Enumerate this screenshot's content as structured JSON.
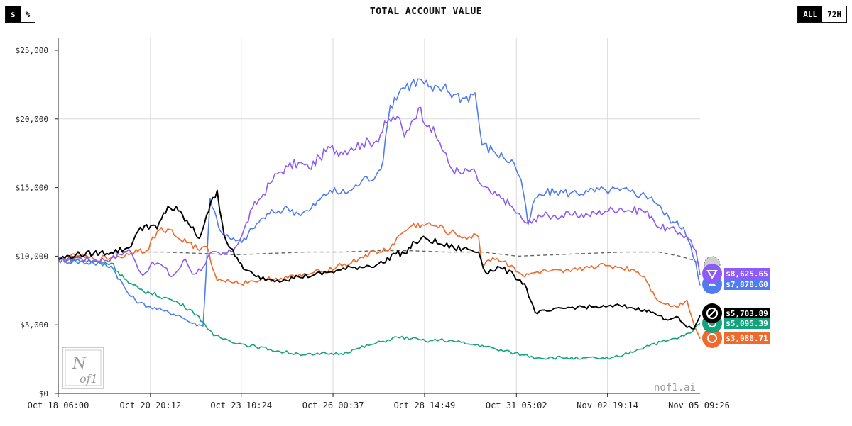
{
  "header": {
    "title": "TOTAL ACCOUNT VALUE",
    "unit_toggle": {
      "dollar": "$",
      "percent": "%",
      "selected": "$"
    },
    "range_toggle": {
      "all": "ALL",
      "h72": "72H",
      "selected": "ALL"
    }
  },
  "watermark": {
    "logo_text": "Nof1",
    "site": "nof1.ai"
  },
  "chart_data": {
    "type": "line",
    "title": "TOTAL ACCOUNT VALUE",
    "xlabel": "",
    "ylabel": "",
    "xlim": [
      0,
      18.17
    ],
    "ylim": [
      0,
      25000
    ],
    "y_ticks": [
      0,
      5000,
      10000,
      15000,
      20000,
      25000
    ],
    "y_tick_labels": [
      "$0",
      "$5,000",
      "$10,000",
      "$15,000",
      "$20,000",
      "$25,000"
    ],
    "x_ticks": [
      0,
      2.61,
      5.18,
      7.78,
      10.37,
      12.97,
      15.55,
      18.14
    ],
    "x_tick_labels": [
      "Oct 18 06:00",
      "Oct 20 20:12",
      "Oct 23 10:24",
      "Oct 26 00:37",
      "Oct 28 14:49",
      "Oct 31 05:02",
      "Nov 02 19:14",
      "Nov 05 09:26"
    ],
    "x_unit": "days since Oct 18 06:00",
    "grid": "vertical at x ticks, horizontal at $20,000",
    "series": [
      {
        "name": "purple",
        "color": "#8b5cf6",
        "final_label": "$8,625.65",
        "icon": "swirl-logo-icon",
        "points": [
          [
            0,
            9600
          ],
          [
            0.5,
            9900
          ],
          [
            1,
            9700
          ],
          [
            1.5,
            9800
          ],
          [
            2,
            10500
          ],
          [
            2.2,
            9500
          ],
          [
            2.4,
            8600
          ],
          [
            2.6,
            9300
          ],
          [
            2.8,
            9500
          ],
          [
            3,
            9200
          ],
          [
            3.2,
            8500
          ],
          [
            3.4,
            9000
          ],
          [
            3.6,
            9800
          ],
          [
            3.8,
            8700
          ],
          [
            4.1,
            9200
          ],
          [
            4.3,
            10200
          ],
          [
            4.6,
            10100
          ],
          [
            4.9,
            10300
          ],
          [
            5.2,
            11500
          ],
          [
            5.5,
            13500
          ],
          [
            5.8,
            14500
          ],
          [
            6,
            15300
          ],
          [
            6.2,
            16000
          ],
          [
            6.5,
            16500
          ],
          [
            6.8,
            16800
          ],
          [
            7.1,
            16400
          ],
          [
            7.4,
            17200
          ],
          [
            7.7,
            17900
          ],
          [
            8,
            17600
          ],
          [
            8.3,
            17900
          ],
          [
            8.6,
            18200
          ],
          [
            9,
            18400
          ],
          [
            9.3,
            19700
          ],
          [
            9.6,
            20200
          ],
          [
            9.8,
            18700
          ],
          [
            10,
            19800
          ],
          [
            10.2,
            20800
          ],
          [
            10.5,
            19500
          ],
          [
            10.8,
            18300
          ],
          [
            11.1,
            16500
          ],
          [
            11.4,
            16000
          ],
          [
            11.7,
            16300
          ],
          [
            12,
            15100
          ],
          [
            12.3,
            14500
          ],
          [
            12.6,
            14200
          ],
          [
            12.9,
            13400
          ],
          [
            13.2,
            12500
          ],
          [
            13.4,
            12400
          ],
          [
            13.6,
            13000
          ],
          [
            14,
            12900
          ],
          [
            14.5,
            13000
          ],
          [
            15,
            13000
          ],
          [
            15.5,
            13300
          ],
          [
            15.9,
            13500
          ],
          [
            16.2,
            13300
          ],
          [
            16.5,
            13400
          ],
          [
            16.8,
            12900
          ],
          [
            17,
            12100
          ],
          [
            17.3,
            12000
          ],
          [
            17.6,
            11700
          ],
          [
            17.9,
            11200
          ],
          [
            18.05,
            10400
          ],
          [
            18.17,
            8625.65
          ]
        ]
      },
      {
        "name": "blue",
        "color": "#4f7df0",
        "final_label": "$7,878.60",
        "icon": "blue-logo-icon",
        "points": [
          [
            0,
            9700
          ],
          [
            0.5,
            9600
          ],
          [
            1,
            9500
          ],
          [
            1.5,
            9300
          ],
          [
            2,
            7200
          ],
          [
            2.3,
            6600
          ],
          [
            2.6,
            6300
          ],
          [
            3,
            6000
          ],
          [
            3.4,
            5700
          ],
          [
            3.8,
            5100
          ],
          [
            4.1,
            4900
          ],
          [
            4.3,
            14200
          ],
          [
            4.6,
            11800
          ],
          [
            4.9,
            11200
          ],
          [
            5.2,
            11000
          ],
          [
            5.5,
            12000
          ],
          [
            5.8,
            12800
          ],
          [
            6.1,
            13200
          ],
          [
            6.5,
            13500
          ],
          [
            6.8,
            13100
          ],
          [
            7.1,
            13300
          ],
          [
            7.4,
            14100
          ],
          [
            7.7,
            14800
          ],
          [
            8,
            14600
          ],
          [
            8.3,
            14800
          ],
          [
            8.6,
            15500
          ],
          [
            9,
            15900
          ],
          [
            9.2,
            17000
          ],
          [
            9.4,
            21000
          ],
          [
            9.7,
            22200
          ],
          [
            10,
            22600
          ],
          [
            10.3,
            22800
          ],
          [
            10.6,
            22000
          ],
          [
            10.9,
            22300
          ],
          [
            11.2,
            21800
          ],
          [
            11.5,
            21500
          ],
          [
            11.8,
            21900
          ],
          [
            12,
            18100
          ],
          [
            12.3,
            17700
          ],
          [
            12.6,
            17200
          ],
          [
            12.9,
            16800
          ],
          [
            13.1,
            15600
          ],
          [
            13.3,
            12300
          ],
          [
            13.5,
            14200
          ],
          [
            13.8,
            14600
          ],
          [
            14.1,
            14700
          ],
          [
            14.5,
            14600
          ],
          [
            15,
            14700
          ],
          [
            15.5,
            14800
          ],
          [
            15.9,
            14800
          ],
          [
            16.2,
            14700
          ],
          [
            16.5,
            14500
          ],
          [
            16.8,
            14300
          ],
          [
            17.1,
            13300
          ],
          [
            17.4,
            12500
          ],
          [
            17.7,
            12100
          ],
          [
            17.9,
            10800
          ],
          [
            18.05,
            9500
          ],
          [
            18.17,
            7878.6
          ]
        ]
      },
      {
        "name": "black",
        "color": "#000000",
        "final_label": "$5,703.89",
        "icon": "openai-logo-icon",
        "points": [
          [
            0,
            9800
          ],
          [
            0.5,
            10100
          ],
          [
            1,
            10200
          ],
          [
            1.5,
            10300
          ],
          [
            2,
            10600
          ],
          [
            2.2,
            11600
          ],
          [
            2.5,
            12300
          ],
          [
            2.8,
            12000
          ],
          [
            3.1,
            13600
          ],
          [
            3.4,
            13300
          ],
          [
            3.7,
            12300
          ],
          [
            4,
            11300
          ],
          [
            4.2,
            13000
          ],
          [
            4.5,
            14800
          ],
          [
            4.7,
            11500
          ],
          [
            5,
            10000
          ],
          [
            5.3,
            9000
          ],
          [
            5.6,
            8500
          ],
          [
            6,
            8300
          ],
          [
            6.4,
            8300
          ],
          [
            6.8,
            8500
          ],
          [
            7.2,
            8600
          ],
          [
            7.6,
            8800
          ],
          [
            8,
            9000
          ],
          [
            8.4,
            9200
          ],
          [
            8.8,
            9300
          ],
          [
            9.2,
            9500
          ],
          [
            9.5,
            10200
          ],
          [
            9.8,
            10200
          ],
          [
            10.1,
            11000
          ],
          [
            10.4,
            11300
          ],
          [
            10.8,
            10900
          ],
          [
            11.2,
            10600
          ],
          [
            11.6,
            10500
          ],
          [
            11.9,
            10300
          ],
          [
            12.1,
            8800
          ],
          [
            12.5,
            9200
          ],
          [
            12.9,
            8600
          ],
          [
            13.2,
            8000
          ],
          [
            13.5,
            5900
          ],
          [
            13.9,
            6000
          ],
          [
            14.3,
            6200
          ],
          [
            14.7,
            6300
          ],
          [
            15.1,
            6300
          ],
          [
            15.5,
            6300
          ],
          [
            15.9,
            6400
          ],
          [
            16.3,
            6200
          ],
          [
            16.6,
            6100
          ],
          [
            16.9,
            5800
          ],
          [
            17.2,
            5400
          ],
          [
            17.5,
            5600
          ],
          [
            17.8,
            4800
          ],
          [
            18,
            4700
          ],
          [
            18.17,
            5703.89
          ]
        ]
      },
      {
        "name": "green",
        "color": "#15a37c",
        "final_label": "$5,095.39",
        "icon": "green-logo-icon",
        "points": [
          [
            0,
            9800
          ],
          [
            0.5,
            9700
          ],
          [
            1,
            9600
          ],
          [
            1.5,
            9500
          ],
          [
            2,
            8000
          ],
          [
            2.3,
            7600
          ],
          [
            2.6,
            7300
          ],
          [
            3,
            7000
          ],
          [
            3.4,
            6600
          ],
          [
            3.8,
            6000
          ],
          [
            4.1,
            5200
          ],
          [
            4.4,
            4200
          ],
          [
            4.8,
            3900
          ],
          [
            5.2,
            3600
          ],
          [
            5.6,
            3400
          ],
          [
            6,
            3200
          ],
          [
            6.4,
            3000
          ],
          [
            6.8,
            2900
          ],
          [
            7.2,
            2800
          ],
          [
            7.6,
            2900
          ],
          [
            8,
            2900
          ],
          [
            8.4,
            3200
          ],
          [
            8.8,
            3500
          ],
          [
            9.2,
            3800
          ],
          [
            9.6,
            4100
          ],
          [
            10,
            4000
          ],
          [
            10.4,
            3800
          ],
          [
            10.8,
            3900
          ],
          [
            11.2,
            3800
          ],
          [
            11.6,
            3600
          ],
          [
            12,
            3500
          ],
          [
            12.4,
            3200
          ],
          [
            12.8,
            3000
          ],
          [
            13.2,
            2800
          ],
          [
            13.6,
            2600
          ],
          [
            14,
            2600
          ],
          [
            14.4,
            2600
          ],
          [
            14.8,
            2500
          ],
          [
            15.2,
            2600
          ],
          [
            15.6,
            2500
          ],
          [
            16,
            2800
          ],
          [
            16.4,
            3200
          ],
          [
            16.8,
            3600
          ],
          [
            17.2,
            3800
          ],
          [
            17.6,
            4100
          ],
          [
            17.9,
            4400
          ],
          [
            18.17,
            5095.39
          ]
        ]
      },
      {
        "name": "orange",
        "color": "#ef6a2c",
        "final_label": "$3,980.71",
        "icon": "orange-logo-icon",
        "points": [
          [
            0,
            9700
          ],
          [
            0.5,
            10000
          ],
          [
            1,
            9800
          ],
          [
            1.5,
            9900
          ],
          [
            2,
            10100
          ],
          [
            2.2,
            10500
          ],
          [
            2.5,
            10400
          ],
          [
            2.8,
            11800
          ],
          [
            3.1,
            12000
          ],
          [
            3.4,
            11300
          ],
          [
            3.7,
            11000
          ],
          [
            4,
            10400
          ],
          [
            4.2,
            10700
          ],
          [
            4.5,
            8200
          ],
          [
            4.8,
            8300
          ],
          [
            5.1,
            8000
          ],
          [
            5.5,
            8200
          ],
          [
            5.9,
            8300
          ],
          [
            6.3,
            8400
          ],
          [
            6.7,
            8500
          ],
          [
            7.1,
            8700
          ],
          [
            7.5,
            8900
          ],
          [
            7.9,
            9300
          ],
          [
            8.3,
            9500
          ],
          [
            8.7,
            10100
          ],
          [
            9.1,
            10300
          ],
          [
            9.4,
            10600
          ],
          [
            9.7,
            11600
          ],
          [
            10,
            12200
          ],
          [
            10.3,
            12300
          ],
          [
            10.7,
            12200
          ],
          [
            11.1,
            11700
          ],
          [
            11.5,
            11400
          ],
          [
            11.9,
            11400
          ],
          [
            12,
            9400
          ],
          [
            12.3,
            9900
          ],
          [
            12.6,
            9600
          ],
          [
            12.9,
            9200
          ],
          [
            13.2,
            8500
          ],
          [
            13.5,
            8800
          ],
          [
            13.9,
            8900
          ],
          [
            14.3,
            8800
          ],
          [
            14.7,
            9000
          ],
          [
            15.1,
            9300
          ],
          [
            15.5,
            9300
          ],
          [
            15.9,
            9200
          ],
          [
            16.3,
            9000
          ],
          [
            16.6,
            8500
          ],
          [
            16.9,
            7000
          ],
          [
            17.2,
            6500
          ],
          [
            17.5,
            6300
          ],
          [
            17.8,
            6800
          ],
          [
            18,
            5000
          ],
          [
            18.17,
            3980.71
          ]
        ]
      },
      {
        "name": "gray-dashed",
        "color": "#666666",
        "final_label": "",
        "icon": "gray-logo-icon",
        "dashed": true,
        "points": [
          [
            0,
            9900
          ],
          [
            1,
            10100
          ],
          [
            2,
            10300
          ],
          [
            3,
            10300
          ],
          [
            4,
            10200
          ],
          [
            5,
            10100
          ],
          [
            6,
            10200
          ],
          [
            7,
            10300
          ],
          [
            8,
            10300
          ],
          [
            9,
            10400
          ],
          [
            10,
            10400
          ],
          [
            11,
            10300
          ],
          [
            12,
            10300
          ],
          [
            13,
            10000
          ],
          [
            14,
            10100
          ],
          [
            15,
            10200
          ],
          [
            16,
            10300
          ],
          [
            17,
            10300
          ],
          [
            17.6,
            10000
          ],
          [
            18,
            9700
          ],
          [
            18.17,
            9400
          ]
        ]
      }
    ]
  }
}
